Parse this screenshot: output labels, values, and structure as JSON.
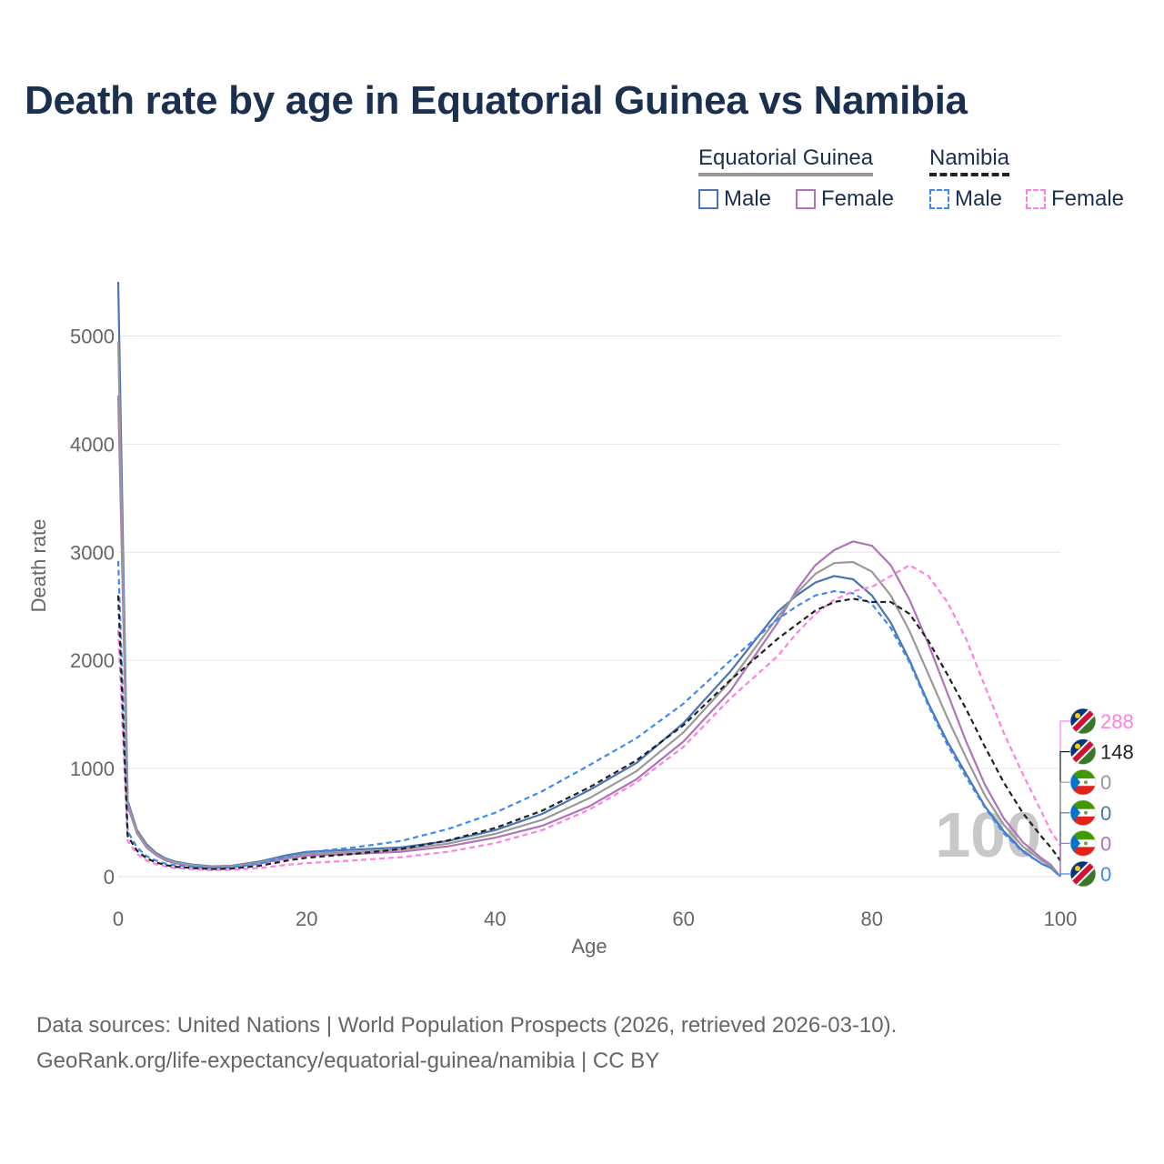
{
  "title": "Death rate by age in Equatorial Guinea vs Namibia",
  "legend": {
    "groups": [
      {
        "label": "Equatorial Guinea",
        "style": "solid",
        "color": "#999999",
        "items": [
          {
            "label": "Male",
            "color": "#4a74b5"
          },
          {
            "label": "Female",
            "color": "#b173b8"
          }
        ]
      },
      {
        "label": "Namibia",
        "style": "dashed",
        "color": "#222222",
        "items": [
          {
            "label": "Male",
            "color": "#3d8af0"
          },
          {
            "label": "Female",
            "color": "#ff80e3"
          }
        ]
      }
    ]
  },
  "chart_data": {
    "type": "line",
    "xlabel": "Age",
    "ylabel": "Death rate",
    "xlim": [
      0,
      100
    ],
    "ylim": [
      0,
      5500
    ],
    "xticks": [
      0,
      20,
      40,
      60,
      80,
      100
    ],
    "yticks": [
      0,
      1000,
      2000,
      3000,
      4000,
      5000
    ],
    "grid": true,
    "watermark": "100",
    "series": [
      {
        "key": "eg_male",
        "name": "Equatorial Guinea Male",
        "color": "#4a74b5",
        "dashed": false,
        "end_value": "0",
        "points": [
          [
            0,
            5500
          ],
          [
            1,
            700
          ],
          [
            2,
            430
          ],
          [
            3,
            300
          ],
          [
            4,
            220
          ],
          [
            5,
            170
          ],
          [
            6,
            140
          ],
          [
            8,
            110
          ],
          [
            10,
            95
          ],
          [
            12,
            100
          ],
          [
            15,
            140
          ],
          [
            18,
            200
          ],
          [
            20,
            230
          ],
          [
            25,
            250
          ],
          [
            30,
            270
          ],
          [
            35,
            330
          ],
          [
            40,
            430
          ],
          [
            45,
            580
          ],
          [
            50,
            800
          ],
          [
            55,
            1050
          ],
          [
            60,
            1420
          ],
          [
            65,
            1900
          ],
          [
            70,
            2450
          ],
          [
            72,
            2600
          ],
          [
            74,
            2720
          ],
          [
            76,
            2780
          ],
          [
            78,
            2750
          ],
          [
            80,
            2600
          ],
          [
            82,
            2350
          ],
          [
            84,
            2000
          ],
          [
            86,
            1600
          ],
          [
            88,
            1250
          ],
          [
            90,
            950
          ],
          [
            92,
            650
          ],
          [
            94,
            420
          ],
          [
            96,
            240
          ],
          [
            98,
            120
          ],
          [
            99,
            80
          ],
          [
            100,
            0
          ]
        ]
      },
      {
        "key": "eg_female",
        "name": "Equatorial Guinea Female",
        "color": "#b173b8",
        "dashed": false,
        "end_value": "0",
        "points": [
          [
            0,
            4450
          ],
          [
            1,
            650
          ],
          [
            2,
            400
          ],
          [
            3,
            270
          ],
          [
            4,
            200
          ],
          [
            5,
            150
          ],
          [
            6,
            125
          ],
          [
            8,
            100
          ],
          [
            10,
            85
          ],
          [
            12,
            90
          ],
          [
            15,
            120
          ],
          [
            18,
            170
          ],
          [
            20,
            195
          ],
          [
            25,
            210
          ],
          [
            30,
            230
          ],
          [
            35,
            280
          ],
          [
            40,
            360
          ],
          [
            45,
            470
          ],
          [
            50,
            650
          ],
          [
            55,
            900
          ],
          [
            60,
            1250
          ],
          [
            65,
            1720
          ],
          [
            70,
            2350
          ],
          [
            72,
            2650
          ],
          [
            74,
            2880
          ],
          [
            76,
            3020
          ],
          [
            78,
            3100
          ],
          [
            80,
            3060
          ],
          [
            82,
            2880
          ],
          [
            84,
            2560
          ],
          [
            86,
            2150
          ],
          [
            88,
            1700
          ],
          [
            90,
            1250
          ],
          [
            92,
            850
          ],
          [
            94,
            540
          ],
          [
            96,
            320
          ],
          [
            98,
            170
          ],
          [
            99,
            110
          ],
          [
            100,
            0
          ]
        ]
      },
      {
        "key": "eg_total",
        "name": "Equatorial Guinea Total",
        "color": "#999999",
        "dashed": false,
        "end_value": "0",
        "points": [
          [
            0,
            4950
          ],
          [
            1,
            675
          ],
          [
            2,
            415
          ],
          [
            3,
            285
          ],
          [
            4,
            210
          ],
          [
            5,
            160
          ],
          [
            6,
            132
          ],
          [
            8,
            105
          ],
          [
            10,
            90
          ],
          [
            12,
            95
          ],
          [
            15,
            130
          ],
          [
            18,
            185
          ],
          [
            20,
            212
          ],
          [
            25,
            230
          ],
          [
            30,
            250
          ],
          [
            35,
            305
          ],
          [
            40,
            395
          ],
          [
            45,
            525
          ],
          [
            50,
            725
          ],
          [
            55,
            975
          ],
          [
            60,
            1335
          ],
          [
            65,
            1810
          ],
          [
            70,
            2400
          ],
          [
            72,
            2620
          ],
          [
            74,
            2800
          ],
          [
            76,
            2900
          ],
          [
            78,
            2910
          ],
          [
            80,
            2820
          ],
          [
            82,
            2600
          ],
          [
            84,
            2270
          ],
          [
            86,
            1870
          ],
          [
            88,
            1470
          ],
          [
            90,
            1100
          ],
          [
            92,
            750
          ],
          [
            94,
            480
          ],
          [
            96,
            280
          ],
          [
            98,
            150
          ],
          [
            99,
            95
          ],
          [
            100,
            0
          ]
        ]
      },
      {
        "key": "na_male",
        "name": "Namibia Male",
        "color": "#3d8af0",
        "dashed": true,
        "end_value": "0",
        "points": [
          [
            0,
            2920
          ],
          [
            1,
            420
          ],
          [
            2,
            270
          ],
          [
            3,
            190
          ],
          [
            4,
            150
          ],
          [
            5,
            120
          ],
          [
            6,
            105
          ],
          [
            8,
            90
          ],
          [
            10,
            80
          ],
          [
            12,
            85
          ],
          [
            15,
            120
          ],
          [
            18,
            190
          ],
          [
            20,
            225
          ],
          [
            25,
            270
          ],
          [
            30,
            330
          ],
          [
            35,
            440
          ],
          [
            40,
            590
          ],
          [
            45,
            790
          ],
          [
            50,
            1030
          ],
          [
            55,
            1280
          ],
          [
            60,
            1600
          ],
          [
            65,
            2000
          ],
          [
            70,
            2380
          ],
          [
            72,
            2500
          ],
          [
            74,
            2600
          ],
          [
            76,
            2640
          ],
          [
            78,
            2620
          ],
          [
            80,
            2520
          ],
          [
            82,
            2300
          ],
          [
            84,
            1980
          ],
          [
            86,
            1580
          ],
          [
            88,
            1220
          ],
          [
            90,
            920
          ],
          [
            92,
            640
          ],
          [
            94,
            400
          ],
          [
            96,
            230
          ],
          [
            98,
            120
          ],
          [
            99,
            80
          ],
          [
            100,
            0
          ]
        ]
      },
      {
        "key": "na_female",
        "name": "Namibia Female",
        "color": "#ff80e3",
        "dashed": true,
        "end_value": "288",
        "points": [
          [
            0,
            2280
          ],
          [
            1,
            330
          ],
          [
            2,
            210
          ],
          [
            3,
            150
          ],
          [
            4,
            115
          ],
          [
            5,
            95
          ],
          [
            6,
            80
          ],
          [
            8,
            68
          ],
          [
            10,
            60
          ],
          [
            12,
            63
          ],
          [
            15,
            80
          ],
          [
            18,
            110
          ],
          [
            20,
            125
          ],
          [
            25,
            150
          ],
          [
            30,
            180
          ],
          [
            35,
            230
          ],
          [
            40,
            310
          ],
          [
            45,
            430
          ],
          [
            50,
            620
          ],
          [
            55,
            870
          ],
          [
            60,
            1200
          ],
          [
            65,
            1650
          ],
          [
            70,
            2040
          ],
          [
            72,
            2250
          ],
          [
            74,
            2430
          ],
          [
            76,
            2560
          ],
          [
            78,
            2640
          ],
          [
            80,
            2680
          ],
          [
            82,
            2780
          ],
          [
            84,
            2880
          ],
          [
            86,
            2780
          ],
          [
            88,
            2540
          ],
          [
            90,
            2200
          ],
          [
            92,
            1760
          ],
          [
            94,
            1330
          ],
          [
            96,
            950
          ],
          [
            98,
            600
          ],
          [
            99,
            420
          ],
          [
            100,
            288
          ]
        ]
      },
      {
        "key": "na_total",
        "name": "Namibia Total",
        "color": "#222222",
        "dashed": true,
        "end_value": "148",
        "points": [
          [
            0,
            2600
          ],
          [
            1,
            375
          ],
          [
            2,
            240
          ],
          [
            3,
            170
          ],
          [
            4,
            132
          ],
          [
            5,
            108
          ],
          [
            6,
            92
          ],
          [
            8,
            79
          ],
          [
            10,
            70
          ],
          [
            12,
            74
          ],
          [
            15,
            100
          ],
          [
            18,
            150
          ],
          [
            20,
            175
          ],
          [
            25,
            210
          ],
          [
            30,
            255
          ],
          [
            35,
            335
          ],
          [
            40,
            450
          ],
          [
            45,
            610
          ],
          [
            50,
            825
          ],
          [
            55,
            1075
          ],
          [
            60,
            1400
          ],
          [
            65,
            1820
          ],
          [
            70,
            2200
          ],
          [
            72,
            2330
          ],
          [
            74,
            2460
          ],
          [
            76,
            2540
          ],
          [
            78,
            2570
          ],
          [
            80,
            2540
          ],
          [
            82,
            2540
          ],
          [
            84,
            2430
          ],
          [
            86,
            2180
          ],
          [
            88,
            1870
          ],
          [
            90,
            1550
          ],
          [
            92,
            1200
          ],
          [
            94,
            870
          ],
          [
            96,
            590
          ],
          [
            98,
            370
          ],
          [
            99,
            270
          ],
          [
            100,
            148
          ]
        ]
      }
    ],
    "end_labels_order": [
      "na_female",
      "na_total",
      "eg_total",
      "eg_male",
      "eg_female",
      "na_male"
    ]
  },
  "sources": {
    "line1": "Data sources: United Nations | World Population Prospects (2026, retrieved 2026-03-10).",
    "line2": "GeoRank.org/life-expectancy/equatorial-guinea/namibia | CC BY"
  }
}
